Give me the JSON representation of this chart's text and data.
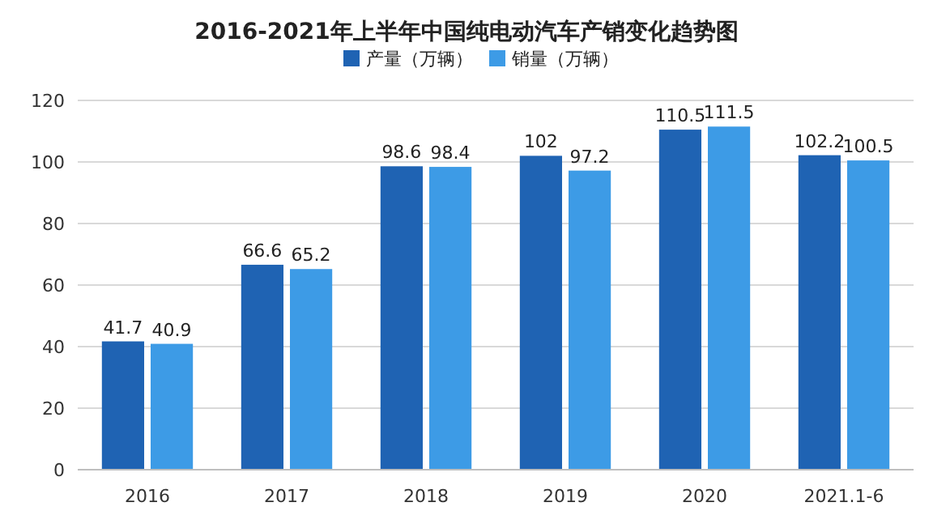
{
  "chart_data": {
    "type": "bar",
    "title": "2016-2021年上半年中国纯电动汽车产销变化趋势图",
    "categories": [
      "2016",
      "2017",
      "2018",
      "2019",
      "2020",
      "2021.1-6"
    ],
    "series": [
      {
        "name": "产量（万辆）",
        "color": "#1f63b3",
        "values": [
          41.7,
          66.6,
          98.6,
          102,
          110.5,
          102.2
        ]
      },
      {
        "name": "销量（万辆）",
        "color": "#3d9be6",
        "values": [
          40.9,
          65.2,
          98.4,
          97.2,
          111.5,
          100.5
        ]
      }
    ],
    "ylim": [
      0,
      120
    ],
    "yticks": [
      0,
      20,
      40,
      60,
      80,
      100,
      120
    ],
    "grid": "y",
    "legend": "top",
    "data_labels": true
  }
}
